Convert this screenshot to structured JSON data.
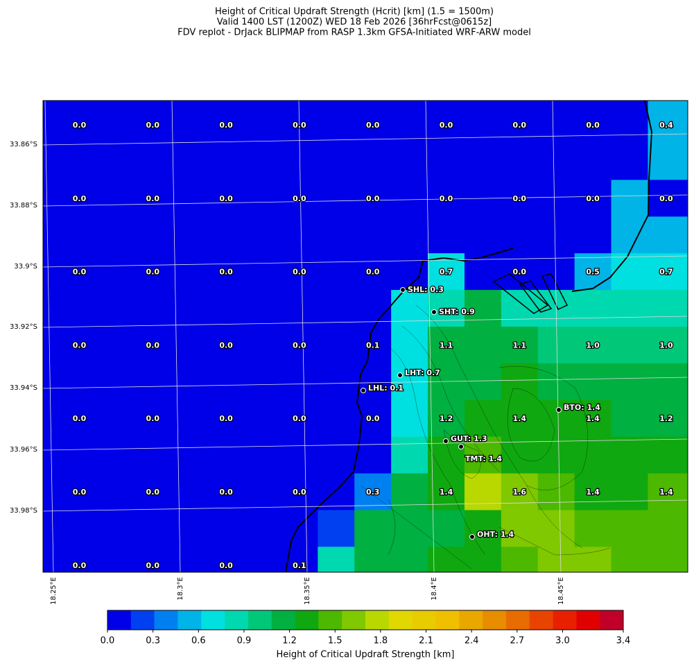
{
  "title_lines": [
    "Height of Critical Updraft Strength (Hcrit) [km] (1.5 = 1500m)",
    "Valid 1400 LST (1200Z) WED 18 Feb 2026 [36hrFcst@0615z]",
    "FDV replot - DrJack BLIPMAP from RASP 1.3km GFSA-Initiated WRF-ARW model"
  ],
  "lat_labels": [
    "33.86°S",
    "33.88°S",
    "33.9°S",
    "33.92°S",
    "33.94°S",
    "33.96°S",
    "33.98°S"
  ],
  "lon_labels": [
    "18.25°E",
    "18.3°E",
    "18.35°E",
    "18.4°E",
    "18.45°E"
  ],
  "cells": [
    [
      0,
      0,
      0,
      0,
      0,
      0,
      0,
      0,
      0,
      0,
      0,
      0,
      0,
      0,
      0,
      0,
      0,
      0.5,
      0.5
    ],
    [
      0,
      0,
      0,
      0,
      0,
      0,
      0,
      0,
      0,
      0,
      0,
      0,
      0,
      0,
      0,
      0,
      0,
      0.5,
      0.5
    ],
    [
      0,
      0,
      0,
      0,
      0,
      0,
      0,
      0,
      0,
      0,
      0,
      0,
      0,
      0,
      0,
      0,
      0,
      0.5,
      0.5
    ],
    [
      0,
      0,
      0,
      0,
      0,
      0,
      0,
      0,
      0,
      0,
      0,
      0,
      0,
      0,
      0,
      0,
      0.5,
      0,
      0
    ],
    [
      0,
      0,
      0,
      0,
      0,
      0,
      0,
      0,
      0,
      0,
      0,
      0,
      0,
      0,
      0,
      0,
      0.5,
      0.5,
      0.5
    ],
    [
      0,
      0,
      0,
      0,
      0,
      0,
      0,
      0,
      0,
      0,
      0,
      0.7,
      0,
      0,
      0,
      0.5,
      0.7,
      0.7,
      0.7
    ],
    [
      0,
      0,
      0,
      0,
      0,
      0,
      0,
      0,
      0,
      0,
      0.7,
      0.85,
      1.15,
      0.85,
      0.85,
      0.85,
      0.85,
      0.85,
      0.85
    ],
    [
      0,
      0,
      0,
      0,
      0,
      0,
      0,
      0,
      0,
      0.1,
      0.7,
      1.15,
      1.15,
      1.15,
      1.0,
      1.0,
      1.0,
      1.0,
      1.0
    ],
    [
      0,
      0,
      0,
      0,
      0,
      0,
      0,
      0,
      0,
      0,
      0.7,
      1.15,
      1.15,
      1.3,
      1.15,
      1.15,
      1.15,
      1.15,
      1.15
    ],
    [
      0,
      0,
      0,
      0,
      0,
      0,
      0,
      0,
      0,
      0,
      0.7,
      1.15,
      1.3,
      1.3,
      1.3,
      1.3,
      1.15,
      1.15,
      1.15
    ],
    [
      0,
      0,
      0,
      0,
      0,
      0,
      0,
      0,
      0,
      0,
      0.85,
      1.3,
      1.45,
      1.3,
      1.3,
      1.3,
      1.3,
      1.3,
      1.3
    ],
    [
      0,
      0,
      0,
      0,
      0,
      0,
      0,
      0,
      0,
      0.35,
      1.15,
      1.3,
      1.75,
      1.6,
      1.45,
      1.3,
      1.3,
      1.45,
      1.45
    ],
    [
      0,
      0,
      0,
      0,
      0,
      0,
      0,
      0,
      0.2,
      1.15,
      1.15,
      1.15,
      1.3,
      1.6,
      1.6,
      1.45,
      1.45,
      1.45,
      1.45
    ],
    [
      0,
      0,
      0,
      0,
      0,
      0,
      0,
      0,
      0.85,
      1.15,
      1.15,
      1.3,
      1.3,
      1.45,
      1.6,
      1.6,
      1.45,
      1.45,
      1.45
    ]
  ],
  "grid_labels": [
    [
      "0.0",
      "0.0",
      "0.0",
      "0.0",
      "0.0",
      "0.0",
      "0.0",
      "0.0",
      "0.4"
    ],
    [
      "0.0",
      "0.0",
      "0.0",
      "0.0",
      "0.0",
      "0.0",
      "0.0",
      "0.0",
      "0.0"
    ],
    [
      "0.0",
      "0.0",
      "0.0",
      "0.0",
      "0.0",
      "0.7",
      "0.0",
      "0.5",
      "0.7"
    ],
    [
      "0.0",
      "0.0",
      "0.0",
      "0.0",
      "0.1",
      "1.1",
      "1.1",
      "1.0",
      "1.0"
    ],
    [
      "0.0",
      "0.0",
      "0.0",
      "0.0",
      "0.0",
      "1.2",
      "1.4",
      "1.4",
      "1.2"
    ],
    [
      "0.0",
      "0.0",
      "0.0",
      "0.0",
      "0.3",
      "1.4",
      "1.6",
      "1.4",
      "1.4"
    ],
    [
      "0.0",
      "0.0",
      "0.0",
      "0.1",
      "",
      "",
      "",
      "",
      ""
    ]
  ],
  "stations": [
    "SHL: 0.3",
    "SHT: 0.9",
    "LHT: 0.7",
    "LHL: 0.1",
    "BTO: 1.4",
    "GUT: 1.3",
    "TMT: 1.4",
    "OHT: 1.4"
  ],
  "colorbar": {
    "label": "Height of Critical Updraft Strength [km]",
    "range": [
      0,
      3.4
    ],
    "colors": [
      "#0000e8",
      "#0040f0",
      "#0080f0",
      "#00b4e8",
      "#00e0e0",
      "#00d8b0",
      "#00c878",
      "#00b040",
      "#10a810",
      "#4cb800",
      "#80c800",
      "#b8d800",
      "#e0d800",
      "#e8cc00",
      "#f0c000",
      "#e8a800",
      "#e88c00",
      "#e86c00",
      "#e84400",
      "#e82000",
      "#e00000",
      "#c00028"
    ],
    "ticks": [
      {
        "value": 0,
        "label": "0.0"
      },
      0.3,
      0.6,
      0.9,
      1.2,
      1.5,
      1.8,
      2.1,
      2.4,
      2.7,
      {
        "value": 3,
        "label": "3.0"
      },
      3.4
    ]
  }
}
